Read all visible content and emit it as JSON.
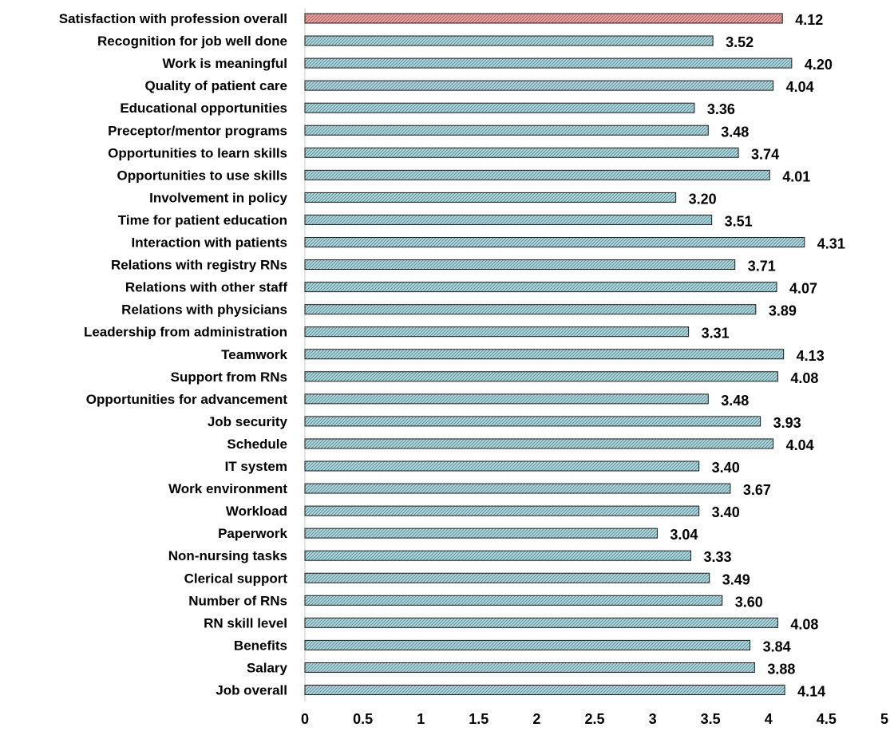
{
  "chart_data": {
    "type": "bar",
    "orientation": "horizontal",
    "title": "",
    "xlabel": "",
    "ylabel": "",
    "xlim": [
      0,
      5
    ],
    "x_ticks": [
      "0",
      "0.5",
      "1",
      "1.5",
      "2",
      "2.5",
      "3",
      "3.5",
      "4",
      "4.5",
      "5"
    ],
    "grid": false,
    "legend": "none",
    "categories": [
      "Satisfaction with profession overall",
      "Recognition for job well done",
      "Work is meaningful",
      "Quality of patient care",
      "Educational opportunities",
      "Preceptor/mentor programs",
      "Opportunities to learn skills",
      "Opportunities to use skills",
      "Involvement in policy",
      "Time for patient education",
      "Interaction with patients",
      "Relations with registry RNs",
      "Relations with other staff",
      "Relations with physicians",
      "Leadership from administration",
      "Teamwork",
      "Support from RNs",
      "Opportunities for advancement",
      "Job security",
      "Schedule",
      "IT system",
      "Work environment",
      "Workload",
      "Paperwork",
      "Non-nursing tasks",
      "Clerical support",
      "Number of RNs",
      "RN skill level",
      "Benefits",
      "Salary",
      "Job overall"
    ],
    "values": [
      4.12,
      3.52,
      4.2,
      4.04,
      3.36,
      3.48,
      3.74,
      4.01,
      3.2,
      3.51,
      4.31,
      3.71,
      4.07,
      3.89,
      3.31,
      4.13,
      4.08,
      3.48,
      3.93,
      4.04,
      3.4,
      3.67,
      3.4,
      3.04,
      3.33,
      3.49,
      3.6,
      4.08,
      3.84,
      3.88,
      4.14
    ],
    "value_labels": [
      "4.12",
      "3.52",
      "4.20",
      "4.04",
      "3.36",
      "3.48",
      "3.74",
      "4.01",
      "3.20",
      "3.51",
      "4.31",
      "3.71",
      "4.07",
      "3.89",
      "3.31",
      "4.13",
      "4.08",
      "3.48",
      "3.93",
      "4.04",
      "3.40",
      "3.67",
      "3.40",
      "3.04",
      "3.33",
      "3.49",
      "3.60",
      "4.08",
      "3.84",
      "3.88",
      "4.14"
    ],
    "highlight_index": 0,
    "colors": {
      "highlight_fill": "#e8a7a7",
      "highlight_hatch": "#a35555",
      "bar_fill": "#b4dce2",
      "bar_hatch": "#4f7f8a",
      "bar_stroke": "#1a1a1a",
      "axis": "#d0d0d0"
    }
  }
}
